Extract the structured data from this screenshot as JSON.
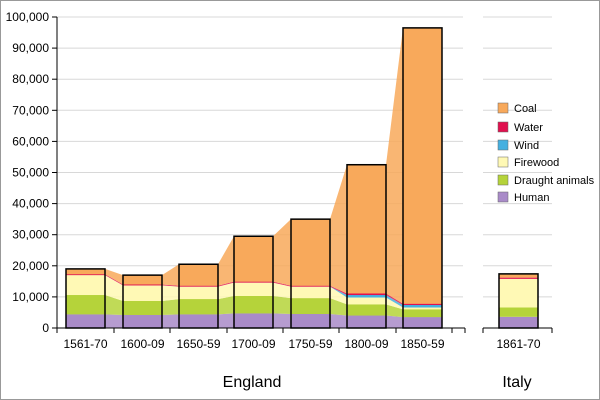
{
  "chart_data": {
    "type": "area",
    "title": "",
    "ylabel": "",
    "ylim": [
      0,
      100000
    ],
    "yticks": [
      "0",
      "10,000",
      "20,000",
      "30,000",
      "40,000",
      "50,000",
      "60,000",
      "70,000",
      "80,000",
      "90,000",
      "100,000"
    ],
    "grid": true,
    "legend_position": "right",
    "groups": [
      {
        "label": "England",
        "categories": [
          "1561-70",
          "1600-09",
          "1650-59",
          "1700-09",
          "1750-59",
          "1800-09",
          "1850-59"
        ]
      },
      {
        "label": "Italy",
        "categories": [
          "1861-70"
        ]
      }
    ],
    "series": [
      {
        "name": "Human",
        "color": "#A98BC8",
        "england": [
          4400,
          4200,
          4400,
          4700,
          4500,
          4000,
          3500
        ],
        "italy": [
          3600
        ]
      },
      {
        "name": "Draught animals",
        "color": "#B5D33A",
        "england": [
          6200,
          4500,
          4900,
          5600,
          5100,
          3600,
          2500
        ],
        "italy": [
          3000
        ]
      },
      {
        "name": "Firewood",
        "color": "#FFF9B5",
        "england": [
          6400,
          5000,
          4000,
          4300,
          3700,
          2200,
          600
        ],
        "italy": [
          9200
        ]
      },
      {
        "name": "Wind",
        "color": "#45B0E0",
        "england": [
          0,
          0,
          0,
          0,
          0,
          800,
          800
        ],
        "italy": [
          0
        ]
      },
      {
        "name": "Water",
        "color": "#E0104F",
        "england": [
          300,
          300,
          300,
          300,
          300,
          500,
          400
        ],
        "italy": [
          400
        ]
      },
      {
        "name": "Coal",
        "color": "#F8A95B",
        "england": [
          1700,
          3000,
          6900,
          14600,
          21400,
          41400,
          88700
        ],
        "italy": [
          1200
        ]
      }
    ]
  }
}
